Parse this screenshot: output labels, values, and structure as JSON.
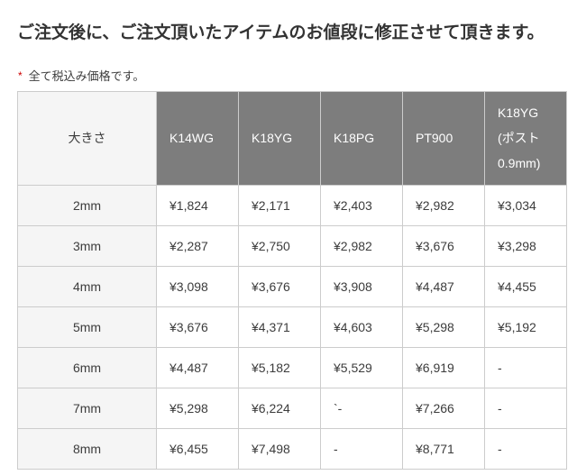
{
  "page": {
    "title": "ご注文後に、ご注文頂いたアイテムのお値段に修正させて頂きます。",
    "note": {
      "marker": "*",
      "text": "全て税込み価格です。"
    }
  },
  "table": {
    "size_header": "大きさ",
    "columns": [
      "K14WG",
      "K18YG",
      "K18PG",
      "PT900",
      "K18YG\n(ポスト\n0.9mm)"
    ],
    "rows": [
      {
        "size": "2mm",
        "prices": [
          "¥1,824",
          "¥2,171",
          "¥2,403",
          "¥2,982",
          "¥3,034"
        ]
      },
      {
        "size": "3mm",
        "prices": [
          "¥2,287",
          "¥2,750",
          "¥2,982",
          "¥3,676",
          "¥3,298"
        ]
      },
      {
        "size": "4mm",
        "prices": [
          "¥3,098",
          "¥3,676",
          "¥3,908",
          "¥4,487",
          "¥4,455"
        ]
      },
      {
        "size": "5mm",
        "prices": [
          "¥3,676",
          "¥4,371",
          "¥4,603",
          "¥5,298",
          "¥5,192"
        ]
      },
      {
        "size": "6mm",
        "prices": [
          "¥4,487",
          "¥5,182",
          "¥5,529",
          "¥6,919",
          "-"
        ]
      },
      {
        "size": "7mm",
        "prices": [
          "¥5,298",
          "¥6,224",
          "`-",
          "¥7,266",
          "-"
        ]
      },
      {
        "size": "8mm",
        "prices": [
          "¥6,455",
          "¥7,498",
          "-",
          "¥8,771",
          "-"
        ]
      }
    ]
  },
  "colors": {
    "header_bg": "#7d7d7d",
    "header_text": "#ffffff",
    "size_col_bg": "#f5f5f5",
    "border": "#cccccc",
    "body_text": "#3c3c3c",
    "title_text": "#333333",
    "asterisk_red": "#cc0000"
  }
}
